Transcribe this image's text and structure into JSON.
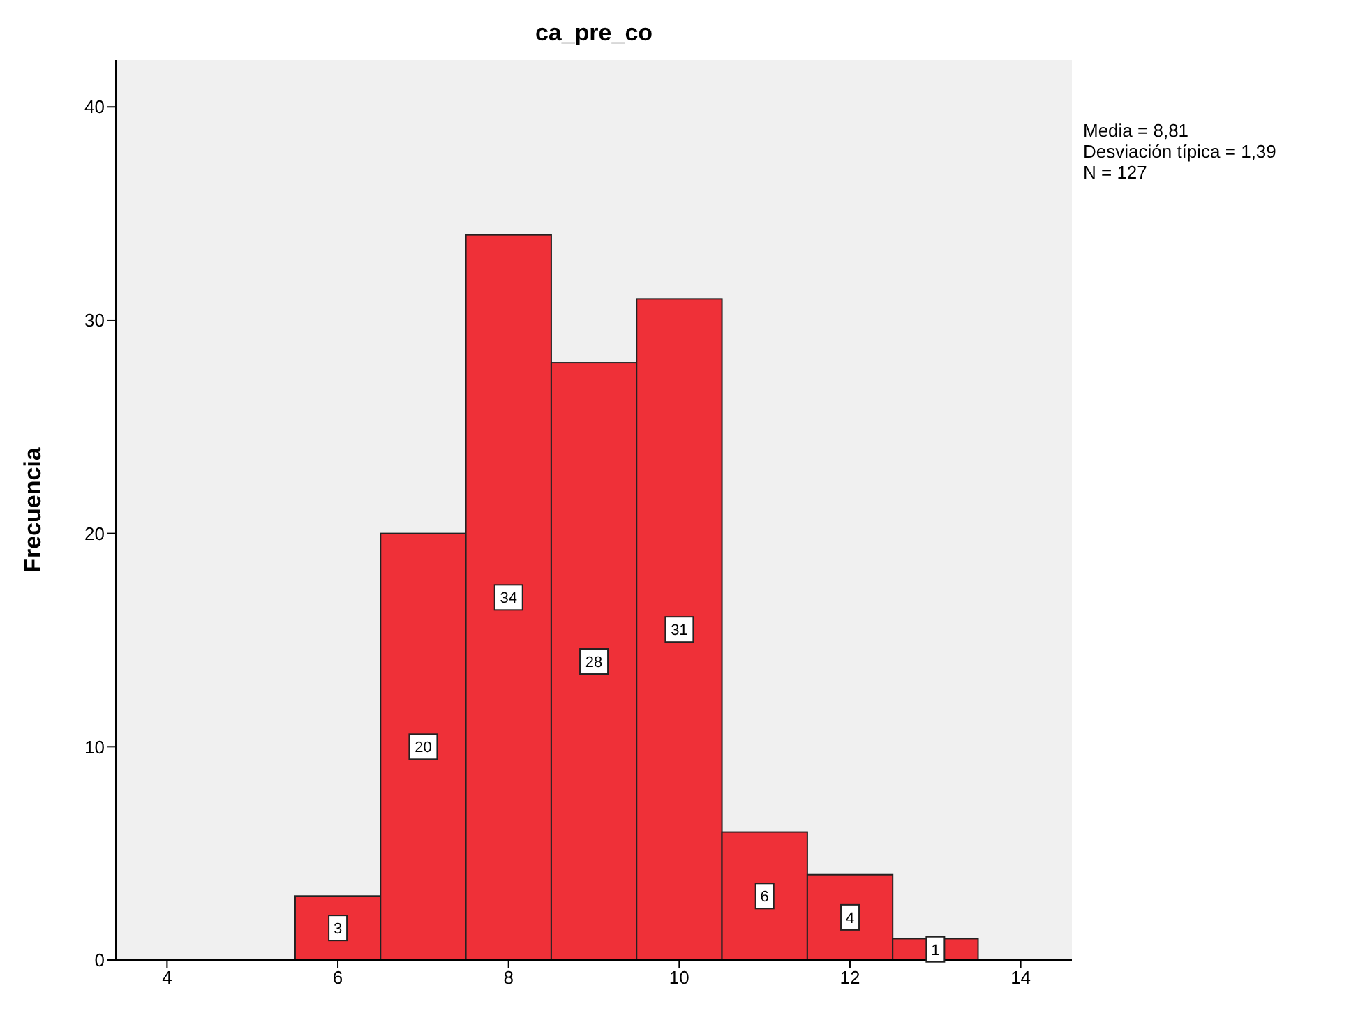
{
  "chart_data": {
    "type": "histogram",
    "title": "ca_pre_co",
    "ylabel": "Frecuencia",
    "bins": [
      5.5,
      6.5,
      7.5,
      8.5,
      9.5,
      10.5,
      11.5,
      12.5,
      13.5
    ],
    "values": [
      3,
      20,
      34,
      28,
      31,
      6,
      4,
      1
    ],
    "color": "#ef3038",
    "xlim": [
      3.4,
      14.6
    ],
    "xticks": [
      4,
      6,
      8,
      10,
      12,
      14
    ],
    "ylim": [
      0,
      42.2
    ],
    "yticks": [
      0,
      10,
      20,
      30,
      40
    ],
    "grid": false,
    "data_labels": true,
    "annotations": [
      "Media = 8,81",
      "Desviación típica = 1,39",
      "N = 127"
    ]
  }
}
